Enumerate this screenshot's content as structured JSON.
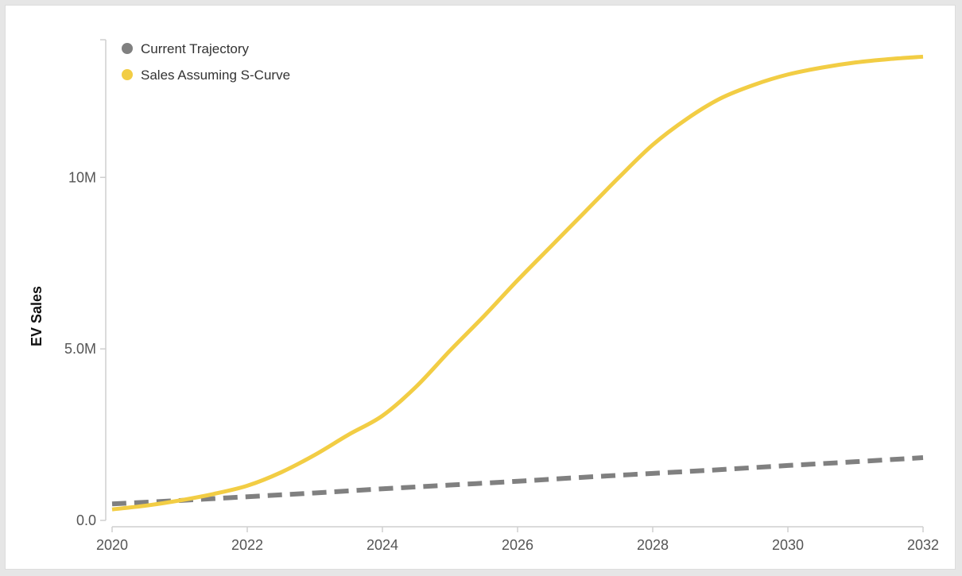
{
  "chart_data": {
    "type": "line",
    "title": "",
    "xlabel": "",
    "ylabel": "EV Sales",
    "xlim": [
      2020,
      2032
    ],
    "ylim": [
      0,
      14500000
    ],
    "x_ticks": [
      2020,
      2022,
      2024,
      2026,
      2028,
      2030,
      2032
    ],
    "x_tick_labels": [
      "2020",
      "2022",
      "2024",
      "2026",
      "2028",
      "2030",
      "2032"
    ],
    "y_ticks": [
      0,
      5000000,
      10000000
    ],
    "y_tick_labels": [
      "0.0",
      "5.0M",
      "10M"
    ],
    "grid": false,
    "legend_position": "top-left",
    "series": [
      {
        "name": "Current Trajectory",
        "color": "#808080",
        "style": "dashed",
        "x": [
          2020,
          2021,
          2022,
          2023,
          2024,
          2025,
          2026,
          2027,
          2028,
          2029,
          2030,
          2031,
          2032
        ],
        "y": [
          480000,
          580000,
          690000,
          800000,
          920000,
          1030000,
          1140000,
          1260000,
          1370000,
          1480000,
          1600000,
          1710000,
          1830000
        ]
      },
      {
        "name": "Sales Assuming S-Curve",
        "color": "#f2cd44",
        "style": "solid",
        "x": [
          2020,
          2020.5,
          2021,
          2021.5,
          2022,
          2022.5,
          2023,
          2023.5,
          2024,
          2024.5,
          2025,
          2025.5,
          2026,
          2026.5,
          2027,
          2027.5,
          2028,
          2028.5,
          2029,
          2029.5,
          2030,
          2030.5,
          2031,
          2031.5,
          2032
        ],
        "y": [
          320000,
          430000,
          580000,
          770000,
          1010000,
          1400000,
          1910000,
          2500000,
          3050000,
          3900000,
          4950000,
          5950000,
          7000000,
          8000000,
          9000000,
          10000000,
          10950000,
          11700000,
          12300000,
          12700000,
          13000000,
          13200000,
          13350000,
          13450000,
          13520000
        ]
      }
    ]
  }
}
